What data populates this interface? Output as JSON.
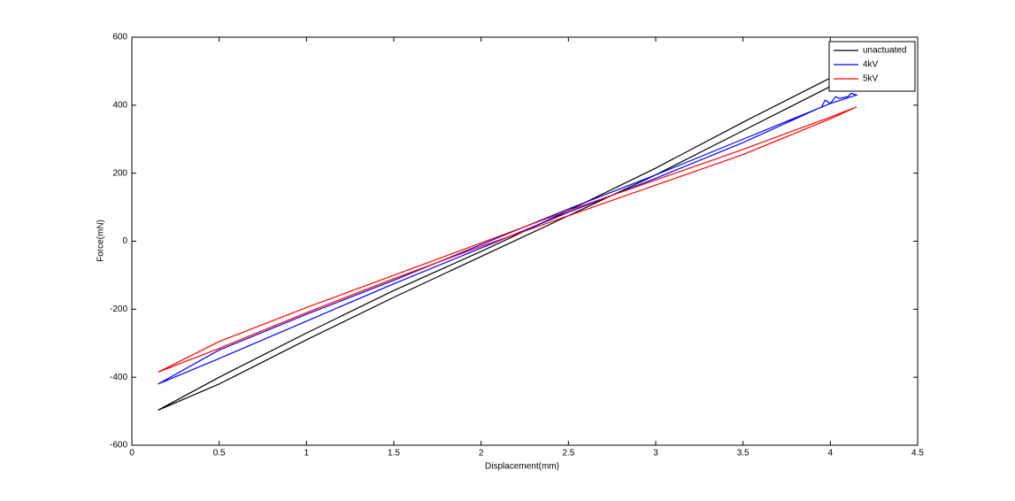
{
  "chart_data": {
    "type": "line",
    "x_label": "Displacement(mm)",
    "y_label": "Force(mN)",
    "xlim": [
      0,
      4.5
    ],
    "ylim": [
      -600,
      600
    ],
    "xticks": [
      0,
      0.5,
      1,
      1.5,
      2,
      2.5,
      3,
      3.5,
      4,
      4.5
    ],
    "yticks": [
      -600,
      -400,
      -200,
      0,
      200,
      400,
      600
    ],
    "legend": "top-right",
    "series": [
      {
        "name": "unactuated",
        "color": "#000000",
        "x": [
          0.15,
          0.5,
          1,
          1.5,
          2,
          2.5,
          3,
          3.5,
          4,
          4.15,
          4,
          3.5,
          3,
          2.5,
          2,
          1.5,
          1,
          0.5,
          0.15
        ],
        "values": [
          -497,
          -400,
          -270,
          -145,
          -30,
          90,
          215,
          350,
          480,
          505,
          455,
          325,
          195,
          75,
          -45,
          -165,
          -290,
          -420,
          -497
        ]
      },
      {
        "name": "4kV",
        "color": "#0000ff",
        "x": [
          0.15,
          0.5,
          1,
          1.5,
          2,
          2.5,
          3,
          3.5,
          3.95,
          3.97,
          4,
          4.03,
          4.05,
          4.1,
          4.12,
          4.15,
          4,
          3.5,
          3,
          2.5,
          2,
          1.5,
          1,
          0.5,
          0.15
        ],
        "values": [
          -420,
          -345,
          -235,
          -125,
          -20,
          85,
          185,
          290,
          395,
          415,
          405,
          425,
          420,
          425,
          435,
          430,
          405,
          300,
          195,
          95,
          -10,
          -115,
          -215,
          -320,
          -420
        ]
      },
      {
        "name": "5kV",
        "color": "#ff0000",
        "x": [
          0.15,
          0.5,
          1,
          1.5,
          2,
          2.5,
          3,
          3.5,
          4,
          4.15,
          4,
          3.5,
          3,
          2.5,
          2,
          1.5,
          1,
          0.5,
          0.15
        ],
        "values": [
          -385,
          -315,
          -210,
          -110,
          -15,
          75,
          165,
          255,
          360,
          395,
          365,
          270,
          180,
          90,
          -5,
          -100,
          -195,
          -295,
          -385
        ]
      }
    ]
  }
}
